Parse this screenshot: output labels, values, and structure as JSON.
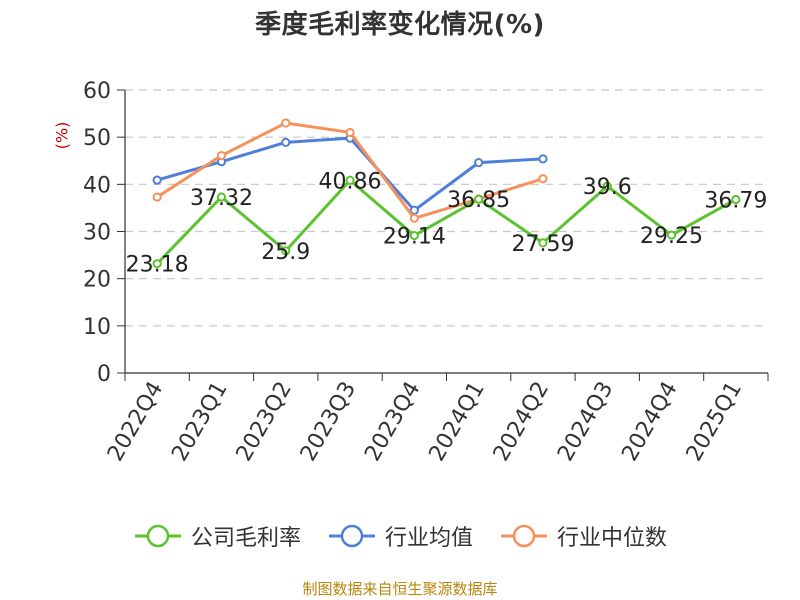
{
  "chart_data": {
    "type": "line",
    "title": "季度毛利率变化情况(%)",
    "ylabel": "(%)",
    "xlabel": "",
    "categories": [
      "2022Q4",
      "2023Q1",
      "2023Q2",
      "2023Q3",
      "2023Q4",
      "2024Q1",
      "2024Q2",
      "2024Q3",
      "2024Q4",
      "2025Q1"
    ],
    "ylim": [
      0,
      60
    ],
    "yticks": [
      0,
      10,
      20,
      30,
      40,
      50,
      60
    ],
    "grid": true,
    "legend_position": "bottom",
    "series": [
      {
        "name": "公司毛利率",
        "color": "#5cc32e",
        "labels": true,
        "values": [
          23.18,
          37.32,
          25.9,
          40.86,
          29.14,
          36.85,
          27.59,
          39.6,
          29.25,
          36.79
        ]
      },
      {
        "name": "行业均值",
        "color": "#4f7fd9",
        "labels": false,
        "values": [
          40.9,
          44.8,
          48.9,
          49.8,
          34.5,
          44.6,
          45.4,
          null,
          null,
          null
        ]
      },
      {
        "name": "行业中位数",
        "color": "#f5925c",
        "labels": false,
        "values": [
          37.3,
          46.1,
          53.0,
          51.0,
          32.8,
          36.9,
          41.2,
          null,
          null,
          null
        ]
      }
    ]
  },
  "source": "制图数据来自恒生聚源数据库"
}
